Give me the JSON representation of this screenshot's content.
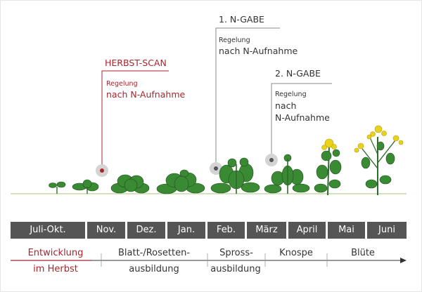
{
  "events": {
    "herbst_scan": {
      "title": "HERBST-SCAN",
      "sub": "Regelung",
      "main": "nach N-Aufnahme"
    },
    "n_gabe_1": {
      "title": "1. N-GABE",
      "sub": "Regelung",
      "main": "nach N-Aufnahme"
    },
    "n_gabe_2": {
      "title": "2. N-GABE",
      "sub": "Regelung",
      "main1": "nach",
      "main2": "N-Aufnahme"
    }
  },
  "months": [
    "Juli-Okt.",
    "Nov.",
    "Dez.",
    "Jan.",
    "Feb.",
    "März",
    "April",
    "Mai",
    "Juni"
  ],
  "phases": {
    "herbst_line1": "Entwicklung",
    "herbst_line2": "im Herbst",
    "blatt_line1": "Blatt-/Rosetten-",
    "blatt_line2": "ausbildung",
    "spross_line1": "Spross-",
    "spross_line2": "ausbildung",
    "knospe": "Knospe",
    "bluete": "Blüte"
  },
  "colors": {
    "accent_red": "#a8252c",
    "month_bar": "#555555",
    "plant_green": "#3a8a34",
    "flower_yellow": "#e8d21a"
  }
}
